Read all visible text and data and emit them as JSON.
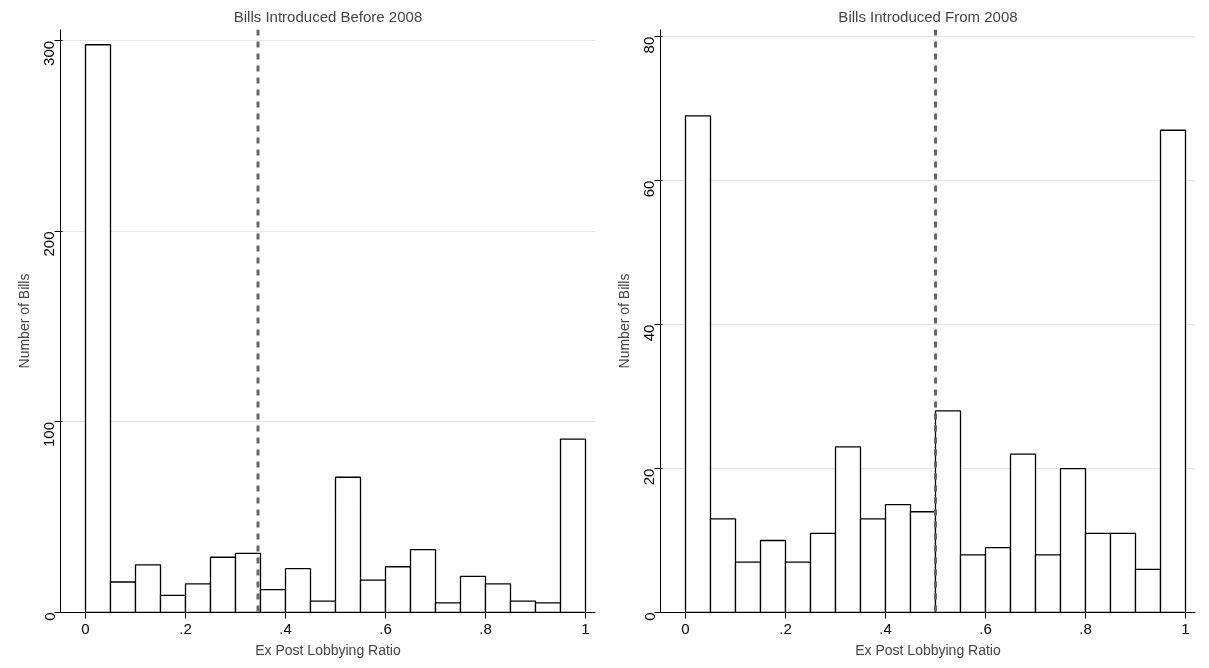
{
  "chart_data": [
    {
      "type": "histogram",
      "title": "Bills Introduced Before 2008",
      "xlabel": "Ex Post Lobbying Ratio",
      "ylabel": "Number of Bills",
      "color": "#ffffff",
      "bins": [
        0,
        0.05,
        0.1,
        0.15,
        0.2,
        0.25,
        0.3,
        0.35,
        0.4,
        0.45,
        0.5,
        0.55,
        0.6,
        0.65,
        0.7,
        0.75,
        0.8,
        0.85,
        0.9,
        0.95,
        1
      ],
      "values": [
        298,
        16,
        25,
        9,
        15,
        29,
        31,
        12,
        23,
        6,
        71,
        17,
        24,
        33,
        5,
        19,
        15,
        6,
        5,
        91
      ],
      "xlim": [
        -0.05,
        1.02
      ],
      "ylim": [
        0,
        306
      ],
      "xticks": [
        0,
        {
          "value": 0.2,
          "label": ".2"
        },
        {
          "value": 0.4,
          "label": ".4"
        },
        {
          "value": 0.6,
          "label": ".6"
        },
        {
          "value": 0.8,
          "label": ".8"
        },
        1
      ],
      "yticks": [
        0,
        100,
        200,
        300
      ],
      "grid": "y",
      "ref_lines": [
        {
          "axis": "x",
          "value": 0.345,
          "label": null,
          "color": "#666666",
          "line_style": "dashed"
        }
      ]
    },
    {
      "type": "histogram",
      "title": "Bills Introduced From 2008",
      "xlabel": "Ex Post Lobbying Ratio",
      "ylabel": "Number of Bills",
      "color": "#ffffff",
      "bins": [
        0,
        0.05,
        0.1,
        0.15,
        0.2,
        0.25,
        0.3,
        0.35,
        0.4,
        0.45,
        0.5,
        0.55,
        0.6,
        0.65,
        0.7,
        0.75,
        0.8,
        0.85,
        0.9,
        0.95,
        1
      ],
      "values": [
        69,
        13,
        7,
        10,
        7,
        11,
        23,
        13,
        15,
        14,
        28,
        8,
        9,
        22,
        8,
        20,
        11,
        11,
        6,
        67
      ],
      "xlim": [
        -0.05,
        1.02
      ],
      "ylim": [
        0,
        81
      ],
      "xticks": [
        0,
        {
          "value": 0.2,
          "label": ".2"
        },
        {
          "value": 0.4,
          "label": ".4"
        },
        {
          "value": 0.6,
          "label": ".6"
        },
        {
          "value": 0.8,
          "label": ".8"
        },
        1
      ],
      "yticks": [
        0,
        20,
        40,
        60,
        80
      ],
      "grid": "y",
      "ref_lines": [
        {
          "axis": "x",
          "value": 0.5,
          "label": null,
          "color": "#666666",
          "line_style": "dashed"
        }
      ]
    }
  ]
}
